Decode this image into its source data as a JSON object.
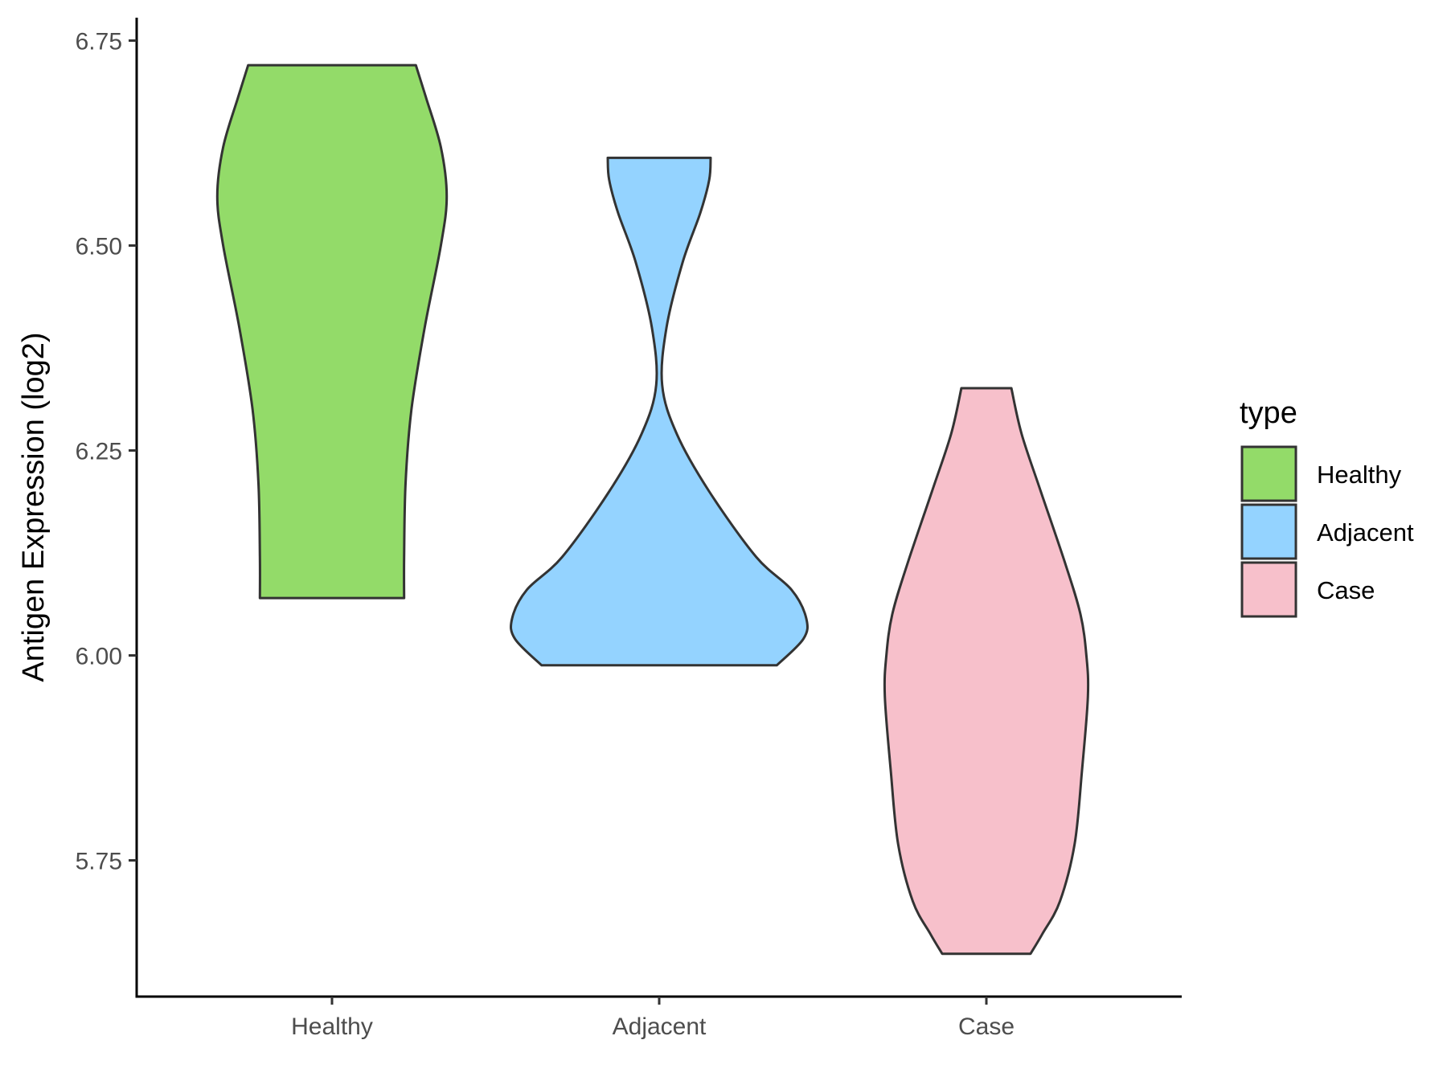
{
  "chart_data": {
    "type": "violin",
    "xlabel": "",
    "ylabel": "Antigen Expression (log2)",
    "ylim": [
      5.59,
      6.775
    ],
    "yticks": [
      5.75,
      6.0,
      6.25,
      6.5,
      6.75
    ],
    "ytick_labels": [
      "5.75",
      "6.00",
      "6.25",
      "6.50",
      "6.75"
    ],
    "categories": [
      "Healthy",
      "Adjacent",
      "Case"
    ],
    "grid": false,
    "series": [
      {
        "name": "Healthy",
        "color": "#93db69",
        "min": 6.07,
        "max": 6.72,
        "density_profile": [
          {
            "y": 6.07,
            "w": 0.49
          },
          {
            "y": 6.12,
            "w": 0.49
          },
          {
            "y": 6.21,
            "w": 0.5
          },
          {
            "y": 6.3,
            "w": 0.54
          },
          {
            "y": 6.4,
            "w": 0.63
          },
          {
            "y": 6.5,
            "w": 0.74
          },
          {
            "y": 6.56,
            "w": 0.78
          },
          {
            "y": 6.62,
            "w": 0.74
          },
          {
            "y": 6.68,
            "w": 0.64
          },
          {
            "y": 6.72,
            "w": 0.57
          }
        ]
      },
      {
        "name": "Adjacent",
        "color": "#94d3ff",
        "min": 5.988,
        "max": 6.607,
        "density_profile": [
          {
            "y": 5.988,
            "w": 0.8
          },
          {
            "y": 6.02,
            "w": 0.98
          },
          {
            "y": 6.045,
            "w": 1.0
          },
          {
            "y": 6.08,
            "w": 0.9
          },
          {
            "y": 6.12,
            "w": 0.66
          },
          {
            "y": 6.2,
            "w": 0.34
          },
          {
            "y": 6.27,
            "w": 0.12
          },
          {
            "y": 6.33,
            "w": 0.02
          },
          {
            "y": 6.4,
            "w": 0.05
          },
          {
            "y": 6.48,
            "w": 0.16
          },
          {
            "y": 6.54,
            "w": 0.28
          },
          {
            "y": 6.58,
            "w": 0.34
          },
          {
            "y": 6.607,
            "w": 0.35
          }
        ]
      },
      {
        "name": "Case",
        "color": "#f7c0cb",
        "min": 5.636,
        "max": 6.326,
        "density_profile": [
          {
            "y": 5.636,
            "w": 0.3
          },
          {
            "y": 5.66,
            "w": 0.38
          },
          {
            "y": 5.7,
            "w": 0.5
          },
          {
            "y": 5.77,
            "w": 0.6
          },
          {
            "y": 5.86,
            "w": 0.65
          },
          {
            "y": 5.95,
            "w": 0.69
          },
          {
            "y": 6.0,
            "w": 0.68
          },
          {
            "y": 6.05,
            "w": 0.64
          },
          {
            "y": 6.11,
            "w": 0.54
          },
          {
            "y": 6.2,
            "w": 0.37
          },
          {
            "y": 6.27,
            "w": 0.24
          },
          {
            "y": 6.326,
            "w": 0.17
          }
        ]
      }
    ],
    "legend": {
      "title": "type",
      "position": "right",
      "entries": [
        "Healthy",
        "Adjacent",
        "Case"
      ]
    }
  }
}
